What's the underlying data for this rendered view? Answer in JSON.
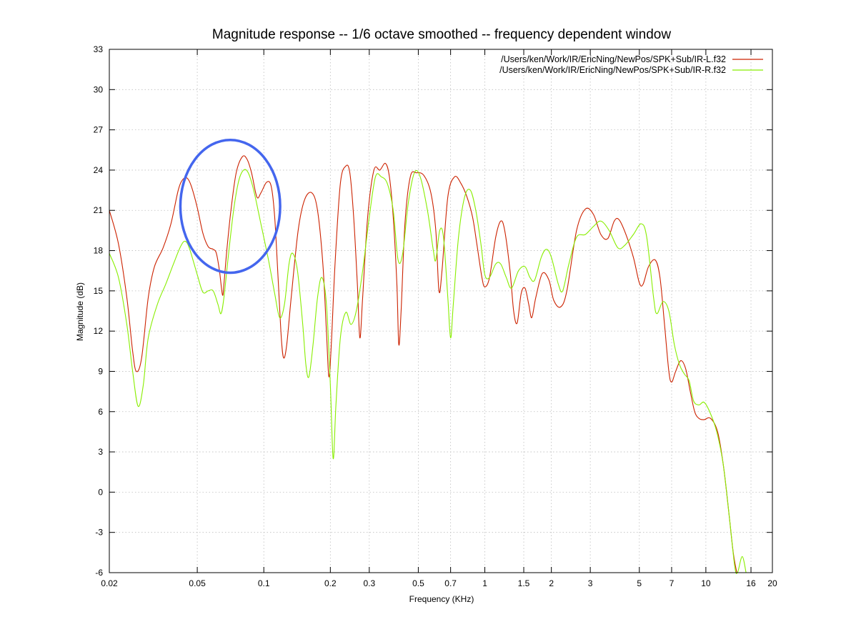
{
  "chart_data": {
    "type": "line",
    "title": "Magnitude response -- 1/6 octave smoothed -- frequency dependent window",
    "xlabel": "Frequency (KHz)",
    "ylabel": "Magnitude (dB)",
    "xscale": "log",
    "xlim": [
      0.02,
      20
    ],
    "ylim": [
      -6,
      33
    ],
    "grid": true,
    "legend_position": "top-right",
    "x_ticks": [
      "0.02",
      "0.05",
      "0.1",
      "0.2",
      "0.3",
      "0.5",
      "0.7",
      "1",
      "1.5",
      "2",
      "3",
      "5",
      "7",
      "10",
      "16",
      "20"
    ],
    "y_ticks": [
      "33",
      "30",
      "27",
      "24",
      "21",
      "18",
      "15",
      "12",
      "9",
      "6",
      "3",
      "0",
      "-3",
      "-6"
    ],
    "series": [
      {
        "name": "/Users/ken/Work/IR/EricNing/NewPos/SPK+Sub/IR-L.f32",
        "color": "#cc2200",
        "points": [
          [
            0.02,
            21.0
          ],
          [
            0.022,
            18.5
          ],
          [
            0.024,
            14.5
          ],
          [
            0.0255,
            10.5
          ],
          [
            0.0265,
            9.0
          ],
          [
            0.028,
            10.0
          ],
          [
            0.03,
            14.5
          ],
          [
            0.032,
            16.8
          ],
          [
            0.035,
            18.2
          ],
          [
            0.038,
            20.0
          ],
          [
            0.041,
            22.5
          ],
          [
            0.043,
            23.3
          ],
          [
            0.045,
            23.4
          ],
          [
            0.047,
            22.8
          ],
          [
            0.05,
            21.2
          ],
          [
            0.053,
            19.3
          ],
          [
            0.056,
            18.3
          ],
          [
            0.059,
            18.1
          ],
          [
            0.061,
            17.8
          ],
          [
            0.063,
            16.5
          ],
          [
            0.065,
            14.7
          ],
          [
            0.066,
            15.5
          ],
          [
            0.068,
            18.0
          ],
          [
            0.071,
            21.0
          ],
          [
            0.075,
            23.8
          ],
          [
            0.08,
            25.0
          ],
          [
            0.084,
            24.8
          ],
          [
            0.088,
            23.8
          ],
          [
            0.093,
            22.0
          ],
          [
            0.097,
            22.3
          ],
          [
            0.103,
            23.1
          ],
          [
            0.108,
            22.8
          ],
          [
            0.112,
            20.5
          ],
          [
            0.116,
            16.0
          ],
          [
            0.12,
            11.5
          ],
          [
            0.123,
            10.0
          ],
          [
            0.127,
            11.0
          ],
          [
            0.133,
            14.5
          ],
          [
            0.143,
            19.5
          ],
          [
            0.153,
            21.8
          ],
          [
            0.165,
            22.3
          ],
          [
            0.175,
            21.0
          ],
          [
            0.185,
            17.0
          ],
          [
            0.192,
            12.0
          ],
          [
            0.197,
            8.6
          ],
          [
            0.202,
            11.0
          ],
          [
            0.21,
            17.0
          ],
          [
            0.222,
            23.0
          ],
          [
            0.235,
            24.3
          ],
          [
            0.245,
            23.8
          ],
          [
            0.255,
            20.5
          ],
          [
            0.265,
            15.5
          ],
          [
            0.272,
            11.5
          ],
          [
            0.28,
            14.5
          ],
          [
            0.295,
            20.5
          ],
          [
            0.315,
            24.0
          ],
          [
            0.335,
            24.0
          ],
          [
            0.355,
            24.5
          ],
          [
            0.37,
            23.5
          ],
          [
            0.385,
            20.5
          ],
          [
            0.4,
            15.5
          ],
          [
            0.408,
            11.0
          ],
          [
            0.418,
            13.5
          ],
          [
            0.435,
            20.0
          ],
          [
            0.46,
            23.5
          ],
          [
            0.49,
            23.8
          ],
          [
            0.53,
            23.6
          ],
          [
            0.57,
            22.3
          ],
          [
            0.6,
            19.5
          ],
          [
            0.62,
            15.0
          ],
          [
            0.64,
            16.5
          ],
          [
            0.68,
            22.0
          ],
          [
            0.73,
            23.5
          ],
          [
            0.78,
            23.0
          ],
          [
            0.83,
            22.0
          ],
          [
            0.88,
            20.5
          ],
          [
            0.92,
            18.5
          ],
          [
            0.97,
            16.0
          ],
          [
            1.0,
            15.3
          ],
          [
            1.05,
            16.0
          ],
          [
            1.12,
            19.0
          ],
          [
            1.18,
            20.2
          ],
          [
            1.23,
            19.5
          ],
          [
            1.3,
            16.5
          ],
          [
            1.35,
            13.5
          ],
          [
            1.4,
            12.6
          ],
          [
            1.46,
            14.8
          ],
          [
            1.52,
            15.2
          ],
          [
            1.58,
            14.0
          ],
          [
            1.63,
            13.0
          ],
          [
            1.7,
            14.5
          ],
          [
            1.82,
            16.3
          ],
          [
            1.95,
            15.8
          ],
          [
            2.05,
            14.3
          ],
          [
            2.2,
            13.8
          ],
          [
            2.35,
            15.0
          ],
          [
            2.6,
            19.5
          ],
          [
            2.85,
            21.1
          ],
          [
            3.1,
            20.7
          ],
          [
            3.35,
            19.2
          ],
          [
            3.6,
            18.9
          ],
          [
            3.85,
            20.2
          ],
          [
            4.05,
            20.3
          ],
          [
            4.35,
            19.2
          ],
          [
            4.7,
            17.5
          ],
          [
            5.0,
            15.6
          ],
          [
            5.2,
            15.5
          ],
          [
            5.5,
            16.8
          ],
          [
            5.9,
            17.3
          ],
          [
            6.2,
            16.0
          ],
          [
            6.5,
            12.5
          ],
          [
            6.8,
            9.0
          ],
          [
            7.0,
            8.2
          ],
          [
            7.3,
            9.0
          ],
          [
            7.7,
            9.8
          ],
          [
            8.1,
            9.2
          ],
          [
            8.5,
            7.5
          ],
          [
            8.9,
            6.0
          ],
          [
            9.3,
            5.5
          ],
          [
            9.8,
            5.4
          ],
          [
            10.5,
            5.5
          ],
          [
            11.3,
            4.5
          ],
          [
            12.0,
            2.0
          ],
          [
            12.7,
            -1.5
          ],
          [
            13.3,
            -4.5
          ],
          [
            13.8,
            -6.0
          ]
        ]
      },
      {
        "name": "/Users/ken/Work/IR/EricNing/NewPos/SPK+Sub/IR-R.f32",
        "color": "#88ee00",
        "points": [
          [
            0.02,
            17.8
          ],
          [
            0.022,
            16.0
          ],
          [
            0.024,
            12.5
          ],
          [
            0.0255,
            9.0
          ],
          [
            0.027,
            6.4
          ],
          [
            0.0285,
            8.0
          ],
          [
            0.03,
            11.5
          ],
          [
            0.033,
            14.0
          ],
          [
            0.036,
            15.5
          ],
          [
            0.039,
            17.0
          ],
          [
            0.042,
            18.3
          ],
          [
            0.044,
            18.7
          ],
          [
            0.046,
            18.2
          ],
          [
            0.05,
            16.2
          ],
          [
            0.053,
            14.9
          ],
          [
            0.056,
            15.0
          ],
          [
            0.059,
            15.0
          ],
          [
            0.062,
            14.0
          ],
          [
            0.064,
            13.3
          ],
          [
            0.066,
            14.5
          ],
          [
            0.069,
            17.5
          ],
          [
            0.073,
            21.0
          ],
          [
            0.077,
            23.2
          ],
          [
            0.081,
            24.0
          ],
          [
            0.085,
            23.8
          ],
          [
            0.09,
            22.5
          ],
          [
            0.097,
            20.0
          ],
          [
            0.105,
            17.3
          ],
          [
            0.112,
            14.8
          ],
          [
            0.118,
            13.0
          ],
          [
            0.124,
            14.0
          ],
          [
            0.13,
            17.0
          ],
          [
            0.135,
            17.8
          ],
          [
            0.142,
            16.5
          ],
          [
            0.15,
            12.5
          ],
          [
            0.155,
            9.5
          ],
          [
            0.16,
            8.6
          ],
          [
            0.167,
            11.0
          ],
          [
            0.175,
            14.5
          ],
          [
            0.183,
            16.0
          ],
          [
            0.192,
            14.0
          ],
          [
            0.2,
            8.0
          ],
          [
            0.206,
            2.5
          ],
          [
            0.212,
            6.5
          ],
          [
            0.222,
            11.5
          ],
          [
            0.235,
            13.4
          ],
          [
            0.248,
            12.5
          ],
          [
            0.262,
            13.5
          ],
          [
            0.28,
            16.5
          ],
          [
            0.3,
            20.5
          ],
          [
            0.32,
            23.5
          ],
          [
            0.34,
            23.5
          ],
          [
            0.362,
            23.0
          ],
          [
            0.385,
            21.0
          ],
          [
            0.405,
            17.3
          ],
          [
            0.425,
            17.8
          ],
          [
            0.45,
            21.5
          ],
          [
            0.48,
            23.8
          ],
          [
            0.51,
            23.5
          ],
          [
            0.55,
            21.0
          ],
          [
            0.585,
            18.0
          ],
          [
            0.6,
            17.3
          ],
          [
            0.625,
            19.5
          ],
          [
            0.65,
            19.0
          ],
          [
            0.68,
            14.5
          ],
          [
            0.7,
            11.5
          ],
          [
            0.72,
            14.0
          ],
          [
            0.76,
            19.0
          ],
          [
            0.81,
            22.0
          ],
          [
            0.86,
            22.5
          ],
          [
            0.91,
            21.0
          ],
          [
            0.96,
            18.5
          ],
          [
            1.0,
            16.2
          ],
          [
            1.05,
            16.0
          ],
          [
            1.12,
            17.0
          ],
          [
            1.18,
            17.0
          ],
          [
            1.25,
            16.0
          ],
          [
            1.32,
            15.2
          ],
          [
            1.42,
            16.5
          ],
          [
            1.52,
            16.8
          ],
          [
            1.6,
            16.0
          ],
          [
            1.68,
            15.8
          ],
          [
            1.8,
            17.5
          ],
          [
            1.9,
            18.1
          ],
          [
            2.0,
            17.5
          ],
          [
            2.15,
            15.5
          ],
          [
            2.25,
            15.0
          ],
          [
            2.4,
            17.0
          ],
          [
            2.6,
            19.0
          ],
          [
            2.85,
            19.2
          ],
          [
            3.1,
            19.8
          ],
          [
            3.35,
            20.2
          ],
          [
            3.65,
            19.5
          ],
          [
            4.0,
            18.2
          ],
          [
            4.3,
            18.4
          ],
          [
            4.7,
            19.2
          ],
          [
            5.1,
            20.0
          ],
          [
            5.4,
            19.0
          ],
          [
            5.8,
            14.5
          ],
          [
            6.0,
            13.3
          ],
          [
            6.4,
            14.2
          ],
          [
            6.8,
            13.5
          ],
          [
            7.2,
            11.0
          ],
          [
            7.6,
            9.5
          ],
          [
            8.0,
            8.8
          ],
          [
            8.4,
            8.3
          ],
          [
            8.8,
            6.8
          ],
          [
            9.3,
            6.5
          ],
          [
            9.8,
            6.7
          ],
          [
            10.4,
            6.0
          ],
          [
            11.2,
            4.5
          ],
          [
            12.0,
            2.0
          ],
          [
            12.8,
            -2.0
          ],
          [
            13.5,
            -5.5
          ],
          [
            13.9,
            -6.0
          ],
          [
            14.6,
            -4.8
          ],
          [
            15.2,
            -6.0
          ]
        ]
      }
    ],
    "annotation": {
      "shape": "ellipse",
      "color": "#4466ee",
      "center": [
        0.0705,
        21.3
      ],
      "freq_span": [
        0.0435,
        0.123
      ],
      "db_span": [
        16.35,
        26.25
      ]
    }
  }
}
